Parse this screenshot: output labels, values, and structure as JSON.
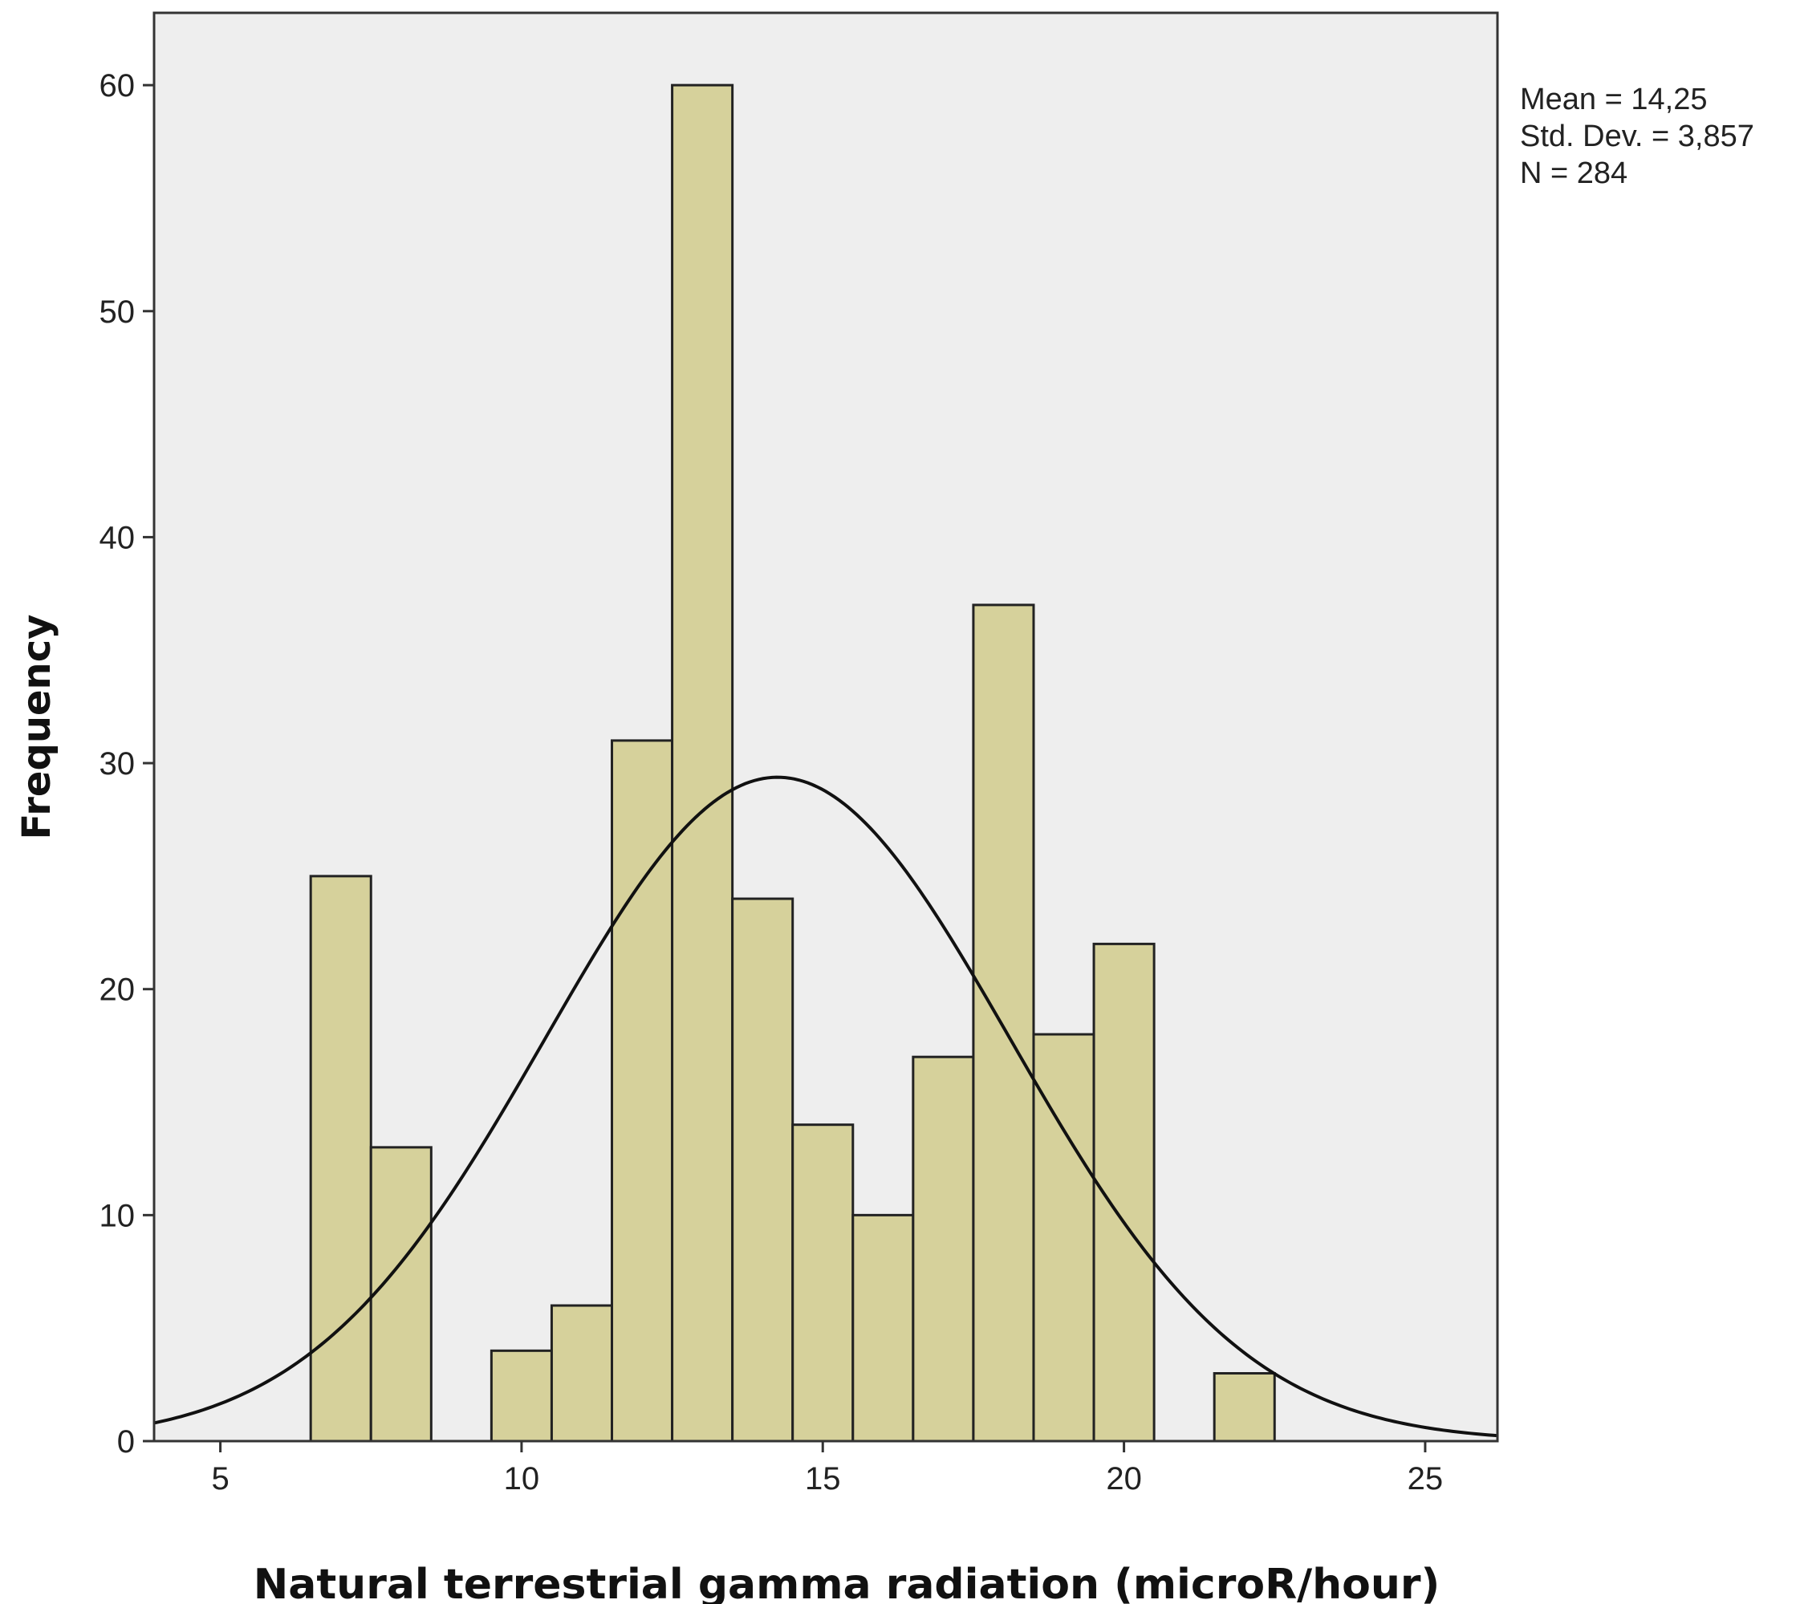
{
  "chart_data": {
    "type": "bar",
    "subtype": "histogram",
    "bins": [
      {
        "start": 6.5,
        "end": 7.5,
        "count": 25
      },
      {
        "start": 7.5,
        "end": 8.5,
        "count": 13
      },
      {
        "start": 9.5,
        "end": 10.5,
        "count": 4
      },
      {
        "start": 10.5,
        "end": 11.5,
        "count": 6
      },
      {
        "start": 11.5,
        "end": 12.5,
        "count": 31
      },
      {
        "start": 12.5,
        "end": 13.5,
        "count": 60
      },
      {
        "start": 13.5,
        "end": 14.5,
        "count": 24
      },
      {
        "start": 14.5,
        "end": 15.5,
        "count": 14
      },
      {
        "start": 15.5,
        "end": 16.5,
        "count": 10
      },
      {
        "start": 16.5,
        "end": 17.5,
        "count": 17
      },
      {
        "start": 17.5,
        "end": 18.5,
        "count": 37
      },
      {
        "start": 18.5,
        "end": 19.5,
        "count": 18
      },
      {
        "start": 19.5,
        "end": 20.5,
        "count": 22
      },
      {
        "start": 21.5,
        "end": 22.5,
        "count": 3
      }
    ],
    "normal_curve": {
      "mean": 14.25,
      "std_dev": 3.857,
      "n": 284,
      "bin_width": 1
    },
    "stats_text": [
      "Mean = 14,25",
      "Std. Dev. = 3,857",
      "N = 284"
    ],
    "xlabel": "Natural terrestrial gamma radiation (microR/hour)",
    "ylabel": "Frequency",
    "xlim": [
      3.9,
      26.2
    ],
    "ylim": [
      0,
      63.2
    ],
    "x_ticks": [
      5,
      10,
      15,
      20,
      25
    ],
    "y_ticks": [
      0,
      10,
      20,
      30,
      40,
      50,
      60
    ],
    "grid": false,
    "colors": {
      "plot_background": "#eeeeee",
      "bar_fill": "#d6d19b",
      "bar_stroke": "#222222",
      "curve": "#111111",
      "frame": "#333333"
    }
  }
}
